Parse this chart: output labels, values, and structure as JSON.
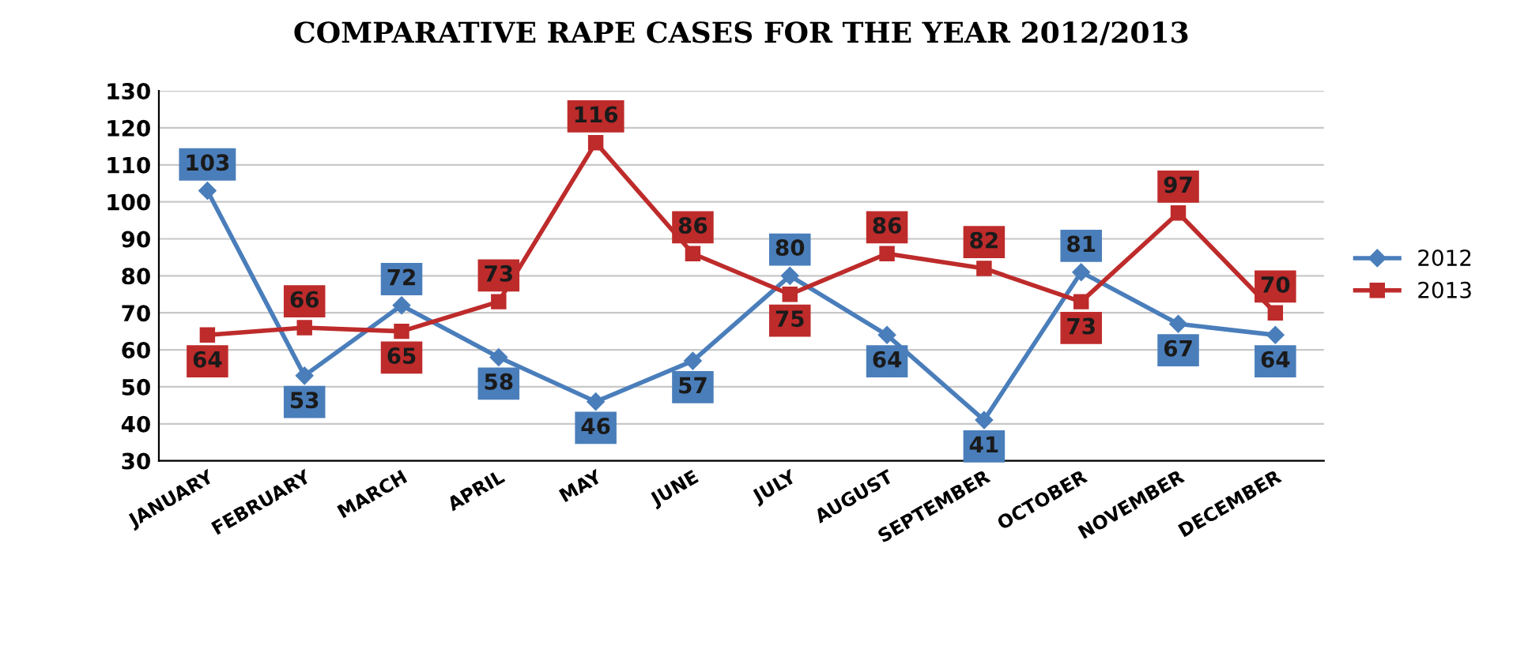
{
  "chart_data": {
    "type": "line",
    "title": "COMPARATIVE RAPE CASES FOR THE YEAR 2012/2013",
    "categories": [
      "JANUARY",
      "FEBRUARY",
      "MARCH",
      "APRIL",
      "MAY",
      "JUNE",
      "JULY",
      "AUGUST",
      "SEPTEMBER",
      "OCTOBER",
      "NOVEMBER",
      "DECEMBER"
    ],
    "series": [
      {
        "name": "2012",
        "color": "#4a7ebb",
        "marker": "diamond",
        "values": [
          103,
          53,
          72,
          58,
          46,
          57,
          80,
          64,
          41,
          81,
          67,
          64
        ]
      },
      {
        "name": "2013",
        "color": "#be2b2b",
        "marker": "square",
        "values": [
          64,
          66,
          65,
          73,
          116,
          86,
          75,
          86,
          82,
          73,
          97,
          70
        ]
      }
    ],
    "ylim": [
      30,
      130
    ],
    "yticks": [
      30,
      40,
      50,
      60,
      70,
      80,
      90,
      100,
      110,
      120,
      130
    ],
    "grid": "y",
    "legend": "right",
    "data_labels": true,
    "line_style": "solid"
  }
}
